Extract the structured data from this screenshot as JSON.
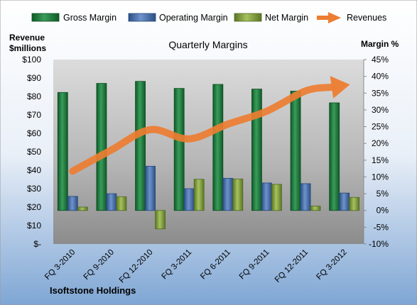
{
  "chart_data": {
    "type": "bar",
    "title": "Quarterly Margins",
    "left_axis_label_line1": "Revenue",
    "left_axis_label_line2": "$millions",
    "right_axis_label": "Margin %",
    "footer_label": "Isoftstone Holdings",
    "categories": [
      "FQ 3-2010",
      "FQ 9-2010",
      "FQ 12-2010",
      "FQ 3-2011",
      "FQ 6-2011",
      "FQ 9-2011",
      "FQ 12-2011",
      "FQ 3-2012"
    ],
    "left_axis": {
      "min": 0,
      "max": 100,
      "step": 10,
      "tick_labels": [
        "$-",
        "$10",
        "$20",
        "$30",
        "$40",
        "$50",
        "$60",
        "$70",
        "$80",
        "$90",
        "$100"
      ]
    },
    "right_axis": {
      "min": -10,
      "max": 45,
      "step": 5,
      "tick_labels": [
        "-10%",
        "-5%",
        "0%",
        "5%",
        "10%",
        "15%",
        "20%",
        "25%",
        "30%",
        "35%",
        "40%",
        "45%"
      ]
    },
    "series": [
      {
        "name": "Gross Margin",
        "axis": "right",
        "kind": "bar",
        "color": "#1e7a3c",
        "values": [
          35.2,
          37.9,
          38.5,
          36.4,
          37.6,
          36.2,
          35.6,
          32.1
        ]
      },
      {
        "name": "Operating Margin",
        "axis": "right",
        "kind": "bar",
        "color": "#4a72b0",
        "values": [
          4.2,
          5.0,
          13.2,
          6.5,
          9.6,
          8.2,
          8.0,
          5.2
        ]
      },
      {
        "name": "Net Margin",
        "axis": "right",
        "kind": "bar",
        "color": "#7c9a3a",
        "values": [
          1.0,
          4.1,
          -5.5,
          9.3,
          9.4,
          7.8,
          1.3,
          3.9
        ]
      },
      {
        "name": "Revenues",
        "axis": "left",
        "kind": "arrow-line",
        "color": "#ed7d31",
        "values": [
          39.5,
          51,
          62,
          57,
          65,
          72,
          83,
          86
        ]
      }
    ],
    "legend_position": "top",
    "grid": false
  }
}
